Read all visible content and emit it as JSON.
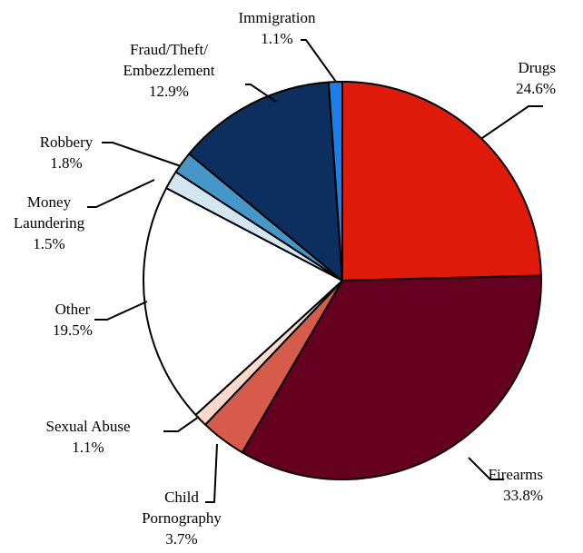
{
  "chart_data": {
    "type": "pie",
    "title": "",
    "start_angle_deg": 0,
    "direction": "clockwise",
    "slices": [
      {
        "label_lines": [
          "Drugs"
        ],
        "value_label": "24.6%",
        "value": 24.6,
        "color": "#e01a0b"
      },
      {
        "label_lines": [
          "Firearms"
        ],
        "value_label": "33.8%",
        "value": 33.8,
        "color": "#660020"
      },
      {
        "label_lines": [
          "Child",
          "Pornography"
        ],
        "value_label": "3.7%",
        "value": 3.7,
        "color": "#d75b4a"
      },
      {
        "label_lines": [
          "Sexual Abuse"
        ],
        "value_label": "1.1%",
        "value": 1.1,
        "color": "#fbd9cb"
      },
      {
        "label_lines": [
          "Other"
        ],
        "value_label": "19.5%",
        "value": 19.5,
        "color": "#ffffff"
      },
      {
        "label_lines": [
          "Money",
          "Laundering"
        ],
        "value_label": "1.5%",
        "value": 1.5,
        "color": "#d3e6f0"
      },
      {
        "label_lines": [
          "Robbery"
        ],
        "value_label": "1.8%",
        "value": 1.8,
        "color": "#4697c8"
      },
      {
        "label_lines": [
          "Fraud/Theft/",
          "Embezzlement"
        ],
        "value_label": "12.9%",
        "value": 12.9,
        "color": "#0c2f5f"
      },
      {
        "label_lines": [
          "Immigration"
        ],
        "value_label": "1.1%",
        "value": 1.1,
        "color": "#1a7fe8"
      }
    ]
  }
}
